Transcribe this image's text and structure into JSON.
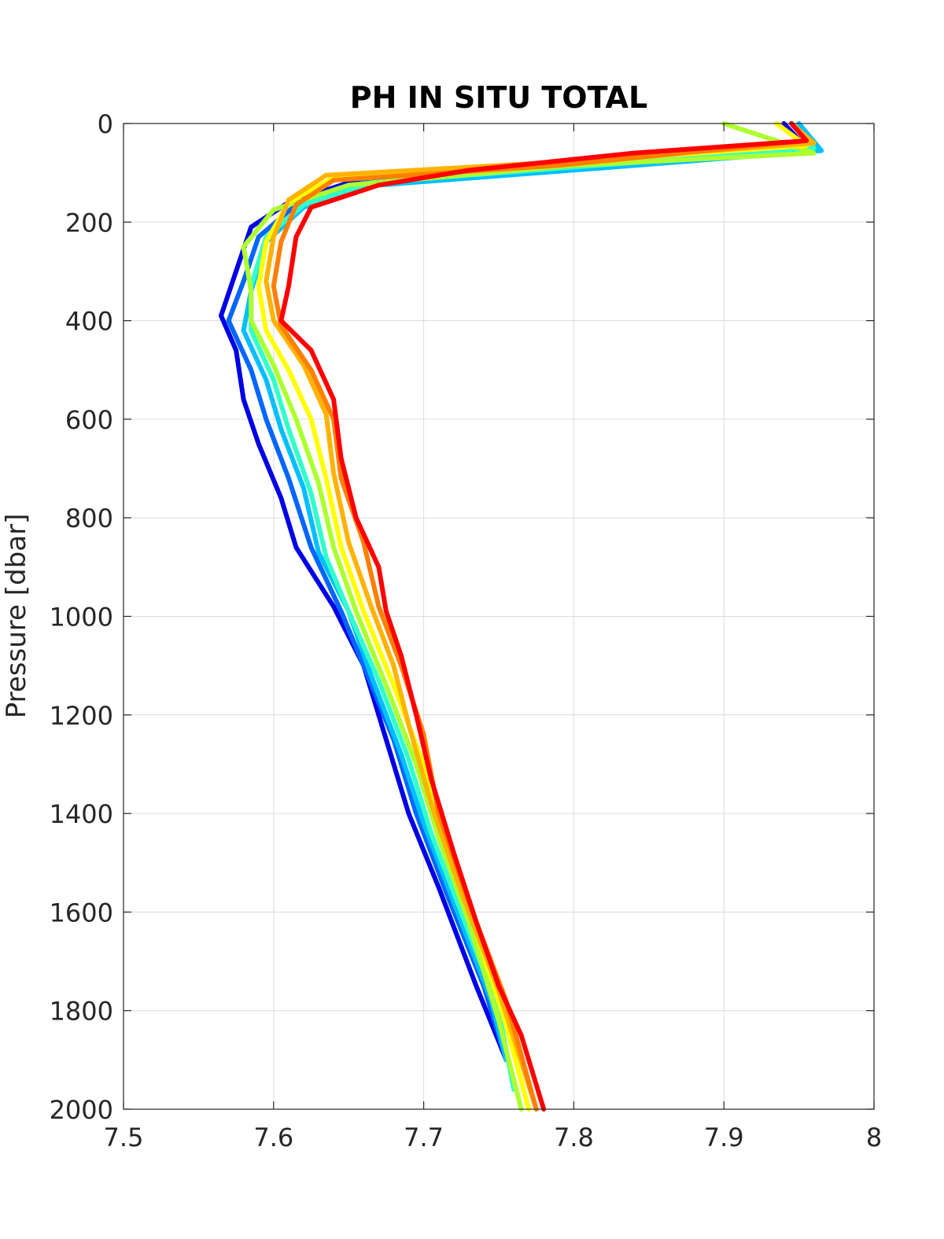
{
  "chart_data": {
    "type": "line",
    "title": "PH IN SITU TOTAL",
    "xlabel": "",
    "ylabel": "Pressure [dbar]",
    "xlim": [
      7.5,
      8
    ],
    "ylim": [
      0,
      2000
    ],
    "y_reversed": true,
    "grid": true,
    "x_ticks": [
      "7.5",
      "7.6",
      "7.7",
      "7.8",
      "7.9",
      "8"
    ],
    "y_ticks": [
      "0",
      "200",
      "400",
      "600",
      "800",
      "1000",
      "1200",
      "1400",
      "1600",
      "1800",
      "2000"
    ],
    "series": [
      {
        "color": "#0000e6",
        "points": [
          [
            7.94,
            0
          ],
          [
            7.955,
            50
          ],
          [
            7.8,
            80
          ],
          [
            7.65,
            120
          ],
          [
            7.61,
            160
          ],
          [
            7.585,
            210
          ],
          [
            7.575,
            300
          ],
          [
            7.565,
            390
          ],
          [
            7.575,
            460
          ],
          [
            7.58,
            560
          ],
          [
            7.59,
            650
          ],
          [
            7.605,
            760
          ],
          [
            7.615,
            860
          ],
          [
            7.64,
            980
          ],
          [
            7.66,
            1100
          ],
          [
            7.675,
            1250
          ],
          [
            7.69,
            1400
          ],
          [
            7.71,
            1550
          ],
          [
            7.735,
            1750
          ],
          [
            7.755,
            1900
          ]
        ]
      },
      {
        "color": "#0066ff",
        "points": [
          [
            7.945,
            0
          ],
          [
            7.96,
            50
          ],
          [
            7.81,
            85
          ],
          [
            7.66,
            120
          ],
          [
            7.615,
            165
          ],
          [
            7.59,
            230
          ],
          [
            7.58,
            320
          ],
          [
            7.57,
            400
          ],
          [
            7.585,
            500
          ],
          [
            7.595,
            600
          ],
          [
            7.61,
            720
          ],
          [
            7.625,
            860
          ],
          [
            7.645,
            990
          ],
          [
            7.66,
            1100
          ],
          [
            7.68,
            1250
          ],
          [
            7.695,
            1400
          ],
          [
            7.715,
            1560
          ],
          [
            7.74,
            1750
          ],
          [
            7.755,
            1900
          ]
        ]
      },
      {
        "color": "#00bfff",
        "points": [
          [
            7.95,
            0
          ],
          [
            7.965,
            55
          ],
          [
            7.82,
            90
          ],
          [
            7.67,
            125
          ],
          [
            7.62,
            170
          ],
          [
            7.595,
            240
          ],
          [
            7.585,
            340
          ],
          [
            7.58,
            420
          ],
          [
            7.595,
            520
          ],
          [
            7.605,
            620
          ],
          [
            7.62,
            740
          ],
          [
            7.63,
            870
          ],
          [
            7.65,
            990
          ],
          [
            7.665,
            1120
          ],
          [
            7.685,
            1280
          ],
          [
            7.7,
            1420
          ],
          [
            7.72,
            1580
          ],
          [
            7.745,
            1780
          ],
          [
            7.755,
            1900
          ]
        ]
      },
      {
        "color": "#33ffcc",
        "points": [
          [
            7.945,
            0
          ],
          [
            7.96,
            50
          ],
          [
            7.815,
            85
          ],
          [
            7.665,
            120
          ],
          [
            7.62,
            165
          ],
          [
            7.595,
            230
          ],
          [
            7.585,
            330
          ],
          [
            7.585,
            420
          ],
          [
            7.6,
            520
          ],
          [
            7.61,
            620
          ],
          [
            7.625,
            750
          ],
          [
            7.635,
            880
          ],
          [
            7.65,
            990
          ],
          [
            7.67,
            1130
          ],
          [
            7.69,
            1290
          ],
          [
            7.705,
            1440
          ],
          [
            7.725,
            1600
          ],
          [
            7.75,
            1800
          ],
          [
            7.76,
            1960
          ]
        ]
      },
      {
        "color": "#adff2f",
        "points": [
          [
            7.9,
            0
          ],
          [
            7.96,
            60
          ],
          [
            7.8,
            85
          ],
          [
            7.65,
            125
          ],
          [
            7.6,
            175
          ],
          [
            7.58,
            250
          ],
          [
            7.585,
            340
          ],
          [
            7.585,
            400
          ],
          [
            7.6,
            490
          ],
          [
            7.615,
            600
          ],
          [
            7.63,
            730
          ],
          [
            7.64,
            860
          ],
          [
            7.655,
            990
          ],
          [
            7.675,
            1140
          ],
          [
            7.695,
            1300
          ],
          [
            7.71,
            1450
          ],
          [
            7.73,
            1620
          ],
          [
            7.75,
            1820
          ],
          [
            7.765,
            2000
          ]
        ]
      },
      {
        "color": "#ffff00",
        "points": [
          [
            7.935,
            0
          ],
          [
            7.955,
            45
          ],
          [
            7.79,
            80
          ],
          [
            7.64,
            110
          ],
          [
            7.61,
            160
          ],
          [
            7.595,
            240
          ],
          [
            7.59,
            330
          ],
          [
            7.595,
            420
          ],
          [
            7.61,
            500
          ],
          [
            7.625,
            600
          ],
          [
            7.635,
            720
          ],
          [
            7.645,
            860
          ],
          [
            7.66,
            990
          ],
          [
            7.68,
            1140
          ],
          [
            7.7,
            1300
          ],
          [
            7.715,
            1460
          ],
          [
            7.735,
            1640
          ],
          [
            7.755,
            1830
          ],
          [
            7.77,
            2000
          ]
        ]
      },
      {
        "color": "#ffb300",
        "points": [
          [
            7.945,
            0
          ],
          [
            7.96,
            40
          ],
          [
            7.78,
            80
          ],
          [
            7.635,
            105
          ],
          [
            7.61,
            155
          ],
          [
            7.6,
            230
          ],
          [
            7.595,
            320
          ],
          [
            7.6,
            400
          ],
          [
            7.62,
            490
          ],
          [
            7.635,
            590
          ],
          [
            7.64,
            710
          ],
          [
            7.65,
            850
          ],
          [
            7.665,
            980
          ],
          [
            7.68,
            1100
          ],
          [
            7.69,
            1220
          ],
          [
            7.705,
            1380
          ],
          [
            7.725,
            1560
          ],
          [
            7.75,
            1760
          ],
          [
            7.775,
            2000
          ]
        ]
      },
      {
        "color": "#ff7f00",
        "points": [
          [
            7.945,
            0
          ],
          [
            7.955,
            35
          ],
          [
            7.79,
            85
          ],
          [
            7.64,
            115
          ],
          [
            7.615,
            165
          ],
          [
            7.605,
            240
          ],
          [
            7.6,
            330
          ],
          [
            7.605,
            410
          ],
          [
            7.625,
            500
          ],
          [
            7.64,
            600
          ],
          [
            7.645,
            720
          ],
          [
            7.66,
            850
          ],
          [
            7.67,
            980
          ],
          [
            7.685,
            1100
          ],
          [
            7.7,
            1240
          ],
          [
            7.71,
            1400
          ],
          [
            7.73,
            1580
          ],
          [
            7.755,
            1780
          ],
          [
            7.775,
            2000
          ]
        ]
      },
      {
        "color": "#ff0000",
        "points": [
          [
            7.945,
            0
          ],
          [
            7.955,
            35
          ],
          [
            7.84,
            60
          ],
          [
            7.73,
            95
          ],
          [
            7.67,
            125
          ],
          [
            7.625,
            170
          ],
          [
            7.615,
            230
          ],
          [
            7.61,
            330
          ],
          [
            7.605,
            400
          ],
          [
            7.625,
            460
          ],
          [
            7.64,
            560
          ],
          [
            7.645,
            680
          ],
          [
            7.655,
            800
          ],
          [
            7.67,
            900
          ],
          [
            7.675,
            990
          ],
          [
            7.685,
            1080
          ],
          [
            7.695,
            1200
          ],
          [
            7.705,
            1330
          ],
          [
            7.72,
            1480
          ],
          [
            7.735,
            1620
          ],
          [
            7.75,
            1750
          ],
          [
            7.765,
            1850
          ],
          [
            7.78,
            2000
          ]
        ]
      }
    ]
  }
}
